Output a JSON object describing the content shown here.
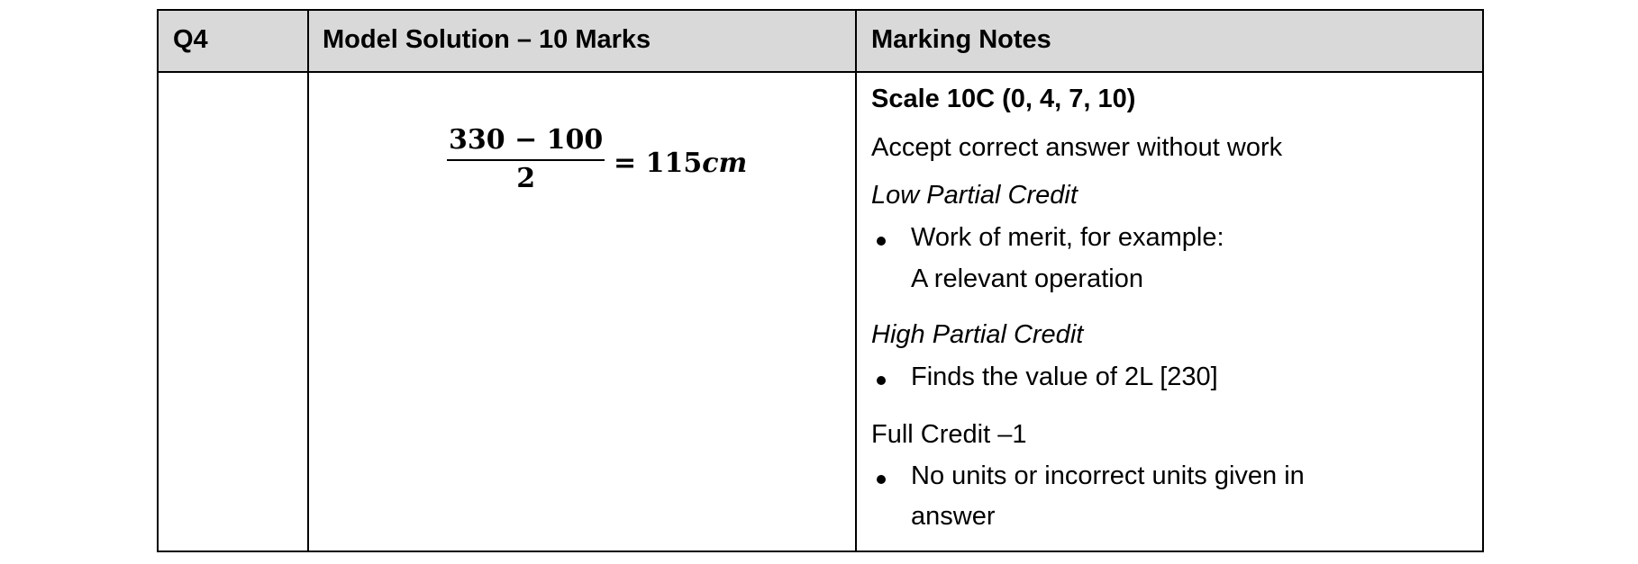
{
  "header": {
    "question": "Q4",
    "solution": "Model Solution – 10 Marks",
    "notes": "Marking Notes"
  },
  "solution": {
    "numerator": "330 − 100",
    "denominator": "2",
    "result": "= 115",
    "unit": "cm"
  },
  "notes": {
    "scale": "Scale 10C (0, 4, 7, 10)",
    "accept": "Accept correct answer without work",
    "low_title": "Low Partial Credit",
    "low_items": [
      "Work of merit, for example:",
      "A relevant operation"
    ],
    "high_title": "High Partial Credit",
    "high_items": [
      "Finds the value of 2L [230]"
    ],
    "full_title": "Full Credit –1",
    "full_items": [
      "No units or incorrect units given in",
      "answer"
    ]
  }
}
